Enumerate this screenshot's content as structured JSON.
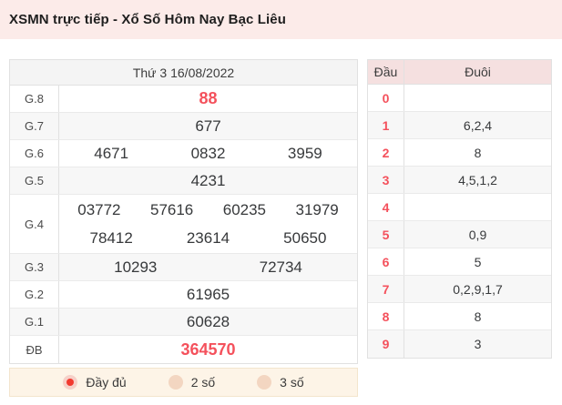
{
  "page_title": "XSMN trực tiếp - Xổ Số Hôm Nay Bạc Liêu",
  "results_table": {
    "date_header": "Thứ 3 16/08/2022",
    "rows": [
      {
        "label": "G.8",
        "lines": [
          [
            "88"
          ]
        ],
        "highlight": true
      },
      {
        "label": "G.7",
        "lines": [
          [
            "677"
          ]
        ],
        "highlight": false
      },
      {
        "label": "G.6",
        "lines": [
          [
            "4671",
            "0832",
            "3959"
          ]
        ],
        "highlight": false
      },
      {
        "label": "G.5",
        "lines": [
          [
            "4231"
          ]
        ],
        "highlight": false
      },
      {
        "label": "G.4",
        "lines": [
          [
            "03772",
            "57616",
            "60235",
            "31979"
          ],
          [
            "78412",
            "23614",
            "50650"
          ]
        ],
        "highlight": false
      },
      {
        "label": "G.3",
        "lines": [
          [
            "10293",
            "72734"
          ]
        ],
        "highlight": false
      },
      {
        "label": "G.2",
        "lines": [
          [
            "61965"
          ]
        ],
        "highlight": false
      },
      {
        "label": "G.1",
        "lines": [
          [
            "60628"
          ]
        ],
        "highlight": false
      },
      {
        "label": "ĐB",
        "lines": [
          [
            "364570"
          ]
        ],
        "highlight": true
      }
    ],
    "display_options": [
      {
        "label": "Đầy đủ",
        "selected": true
      },
      {
        "label": "2 số",
        "selected": false
      },
      {
        "label": "3 số",
        "selected": false
      }
    ]
  },
  "head_tail_table": {
    "columns": [
      "Đầu",
      "Đuôi"
    ],
    "rows": [
      {
        "head": "0",
        "tail": ""
      },
      {
        "head": "1",
        "tail": "6,2,4"
      },
      {
        "head": "2",
        "tail": "8"
      },
      {
        "head": "3",
        "tail": "4,5,1,2"
      },
      {
        "head": "4",
        "tail": ""
      },
      {
        "head": "5",
        "tail": "0,9"
      },
      {
        "head": "6",
        "tail": "5"
      },
      {
        "head": "7",
        "tail": "0,2,9,1,7"
      },
      {
        "head": "8",
        "tail": "8"
      },
      {
        "head": "9",
        "tail": "3"
      }
    ]
  },
  "colors": {
    "topbar_bg": "#fcebe9",
    "accent_red": "#f4515c",
    "radio_dot_red": "#f23b30",
    "options_bar_bg": "#fdf4e7",
    "table_stripe": "#f7f7f7",
    "results_header_bg": "#f4f4f4",
    "head_tail_header_bg": "#f5e0e0"
  }
}
